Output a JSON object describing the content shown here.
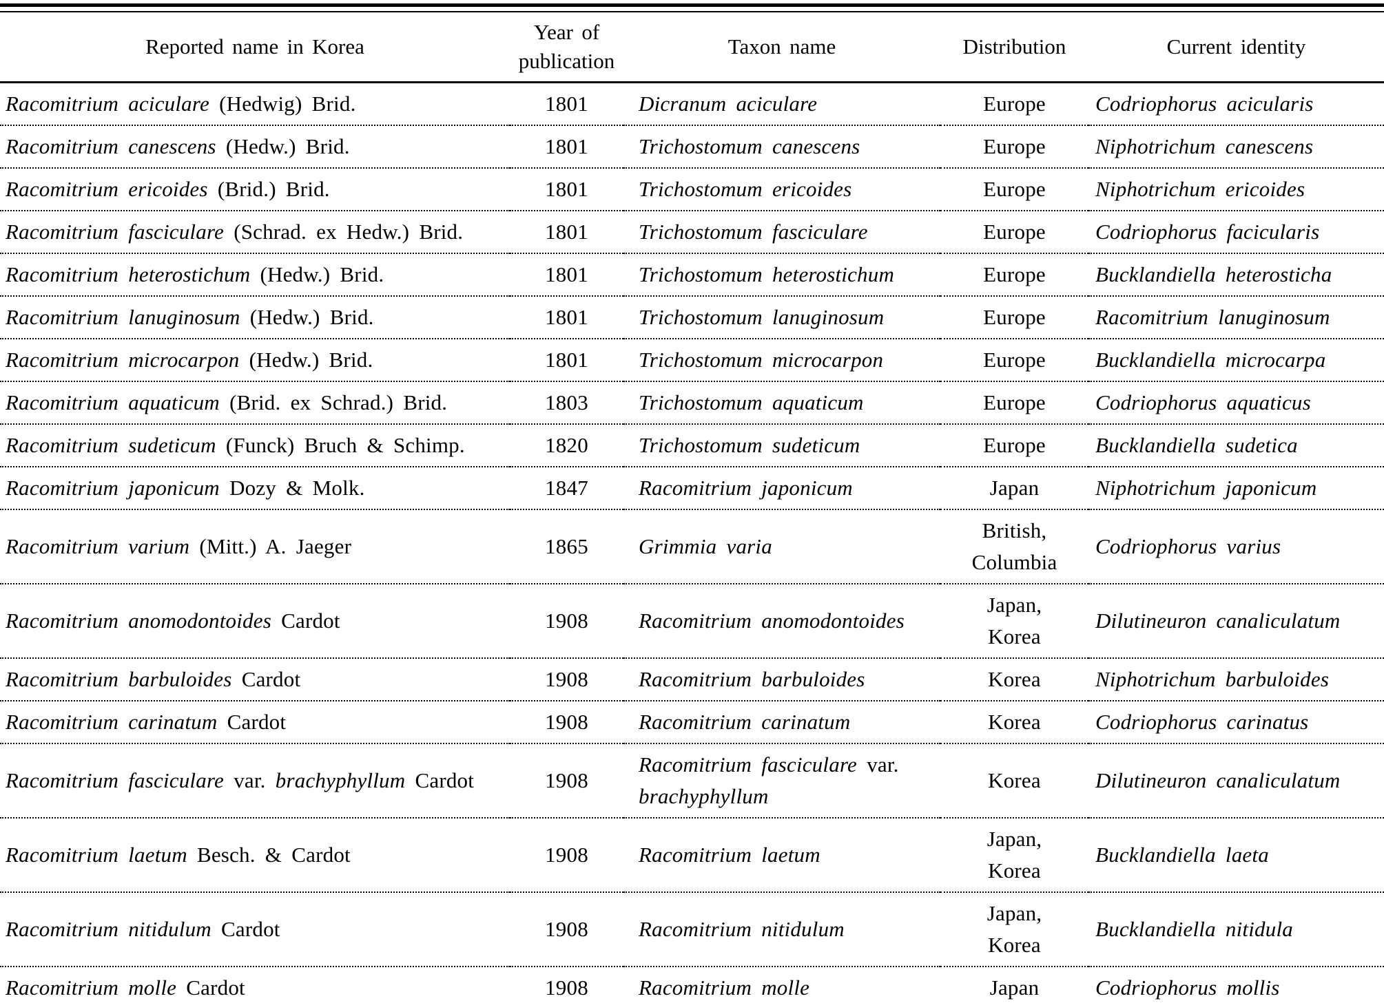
{
  "table": {
    "headers": {
      "reported": "Reported name in Korea",
      "year": "Year of publication",
      "taxon": "Taxon name",
      "distribution": "Distribution",
      "current": "Current identity"
    },
    "rows": [
      {
        "reported": [
          {
            "t": "Racomitrium aciculare",
            "it": true
          },
          {
            "t": "(Hedwig) Brid.",
            "it": false
          }
        ],
        "year": "1801",
        "taxon": [
          [
            {
              "t": "Dicranum aciculare",
              "it": true
            }
          ]
        ],
        "distribution": [
          "Europe"
        ],
        "current": [
          {
            "t": "Codriophorus acicularis",
            "it": true
          }
        ]
      },
      {
        "reported": [
          {
            "t": "Racomitrium canescens",
            "it": true
          },
          {
            "t": "(Hedw.) Brid.",
            "it": false
          }
        ],
        "year": "1801",
        "taxon": [
          [
            {
              "t": "Trichostomum canescens",
              "it": true
            }
          ]
        ],
        "distribution": [
          "Europe"
        ],
        "current": [
          {
            "t": "Niphotrichum canescens",
            "it": true
          }
        ]
      },
      {
        "reported": [
          {
            "t": "Racomitrium ericoides",
            "it": true
          },
          {
            "t": "(Brid.) Brid.",
            "it": false
          }
        ],
        "year": "1801",
        "taxon": [
          [
            {
              "t": "Trichostomum ericoides",
              "it": true
            }
          ]
        ],
        "distribution": [
          "Europe"
        ],
        "current": [
          {
            "t": "Niphotrichum ericoides",
            "it": true
          }
        ]
      },
      {
        "reported": [
          {
            "t": "Racomitrium fasciculare",
            "it": true
          },
          {
            "t": "(Schrad. ex Hedw.) Brid.",
            "it": false
          }
        ],
        "year": "1801",
        "taxon": [
          [
            {
              "t": "Trichostomum fasciculare",
              "it": true
            }
          ]
        ],
        "distribution": [
          "Europe"
        ],
        "current": [
          {
            "t": "Codriophorus facicularis",
            "it": true
          }
        ]
      },
      {
        "reported": [
          {
            "t": "Racomitrium heterostichum",
            "it": true
          },
          {
            "t": "(Hedw.) Brid.",
            "it": false
          }
        ],
        "year": "1801",
        "taxon": [
          [
            {
              "t": "Trichostomum heterostichum",
              "it": true
            }
          ]
        ],
        "distribution": [
          "Europe"
        ],
        "current": [
          {
            "t": "Bucklandiella heterosticha",
            "it": true
          }
        ]
      },
      {
        "reported": [
          {
            "t": "Racomitrium lanuginosum",
            "it": true
          },
          {
            "t": "(Hedw.) Brid.",
            "it": false
          }
        ],
        "year": "1801",
        "taxon": [
          [
            {
              "t": "Trichostomum lanuginosum",
              "it": true
            }
          ]
        ],
        "distribution": [
          "Europe"
        ],
        "current": [
          {
            "t": "Racomitrium lanuginosum",
            "it": true
          }
        ]
      },
      {
        "reported": [
          {
            "t": "Racomitrium microcarpon",
            "it": true
          },
          {
            "t": "(Hedw.) Brid.",
            "it": false
          }
        ],
        "year": "1801",
        "taxon": [
          [
            {
              "t": "Trichostomum microcarpon",
              "it": true
            }
          ]
        ],
        "distribution": [
          "Europe"
        ],
        "current": [
          {
            "t": "Bucklandiella microcarpa",
            "it": true
          }
        ]
      },
      {
        "reported": [
          {
            "t": "Racomitrium aquaticum",
            "it": true
          },
          {
            "t": "(Brid. ex Schrad.) Brid.",
            "it": false
          }
        ],
        "year": "1803",
        "taxon": [
          [
            {
              "t": "Trichostomum aquaticum",
              "it": true
            }
          ]
        ],
        "distribution": [
          "Europe"
        ],
        "current": [
          {
            "t": "Codriophorus aquaticus",
            "it": true
          }
        ]
      },
      {
        "reported": [
          {
            "t": "Racomitrium sudeticum",
            "it": true
          },
          {
            "t": "(Funck) Bruch & Schimp.",
            "it": false
          }
        ],
        "year": "1820",
        "taxon": [
          [
            {
              "t": "Trichostomum sudeticum",
              "it": true
            }
          ]
        ],
        "distribution": [
          "Europe"
        ],
        "current": [
          {
            "t": "Bucklandiella sudetica",
            "it": true
          }
        ]
      },
      {
        "reported": [
          {
            "t": "Racomitrium japonicum",
            "it": true
          },
          {
            "t": "Dozy & Molk.",
            "it": false
          }
        ],
        "year": "1847",
        "taxon": [
          [
            {
              "t": "Racomitrium japonicum",
              "it": true
            }
          ]
        ],
        "distribution": [
          "Japan"
        ],
        "current": [
          {
            "t": "Niphotrichum japonicum",
            "it": true
          }
        ]
      },
      {
        "reported": [
          {
            "t": "Racomitrium varium",
            "it": true
          },
          {
            "t": "(Mitt.) A. Jaeger",
            "it": false
          }
        ],
        "year": "1865",
        "taxon": [
          [
            {
              "t": "Grimmia varia",
              "it": true
            }
          ]
        ],
        "distribution": [
          "British,",
          "Columbia"
        ],
        "current": [
          {
            "t": "Codriophorus varius",
            "it": true
          }
        ]
      },
      {
        "reported": [
          {
            "t": "Racomitrium anomodontoides",
            "it": true
          },
          {
            "t": "Cardot",
            "it": false
          }
        ],
        "year": "1908",
        "taxon": [
          [
            {
              "t": "Racomitrium anomodontoides",
              "it": true
            }
          ]
        ],
        "distribution": [
          "Japan,",
          "Korea"
        ],
        "current": [
          {
            "t": "Dilutineuron canaliculatum",
            "it": true
          }
        ]
      },
      {
        "reported": [
          {
            "t": "Racomitrium barbuloides",
            "it": true
          },
          {
            "t": "Cardot",
            "it": false
          }
        ],
        "year": "1908",
        "taxon": [
          [
            {
              "t": "Racomitrium barbuloides",
              "it": true
            }
          ]
        ],
        "distribution": [
          "Korea"
        ],
        "current": [
          {
            "t": "Niphotrichum barbuloides",
            "it": true
          }
        ]
      },
      {
        "reported": [
          {
            "t": "Racomitrium carinatum",
            "it": true
          },
          {
            "t": "Cardot",
            "it": false
          }
        ],
        "year": "1908",
        "taxon": [
          [
            {
              "t": "Racomitrium carinatum",
              "it": true
            }
          ]
        ],
        "distribution": [
          "Korea"
        ],
        "current": [
          {
            "t": "Codriophorus carinatus",
            "it": true
          }
        ]
      },
      {
        "reported": [
          {
            "t": "Racomitrium fasciculare",
            "it": true
          },
          {
            "t": "var.",
            "it": false
          },
          {
            "t": "brachyphyllum",
            "it": true
          },
          {
            "t": "Cardot",
            "it": false
          }
        ],
        "year": "1908",
        "taxon": [
          [
            {
              "t": "Racomitrium fasciculare",
              "it": true
            },
            {
              "t": "var.",
              "it": false
            }
          ],
          [
            {
              "t": "brachyphyllum",
              "it": true
            }
          ]
        ],
        "distribution": [
          "Korea"
        ],
        "current": [
          {
            "t": "Dilutineuron canaliculatum",
            "it": true
          }
        ]
      },
      {
        "reported": [
          {
            "t": "Racomitrium laetum",
            "it": true
          },
          {
            "t": "Besch. & Cardot",
            "it": false
          }
        ],
        "year": "1908",
        "taxon": [
          [
            {
              "t": "Racomitrium laetum",
              "it": true
            }
          ]
        ],
        "distribution": [
          "Japan,",
          "Korea"
        ],
        "current": [
          {
            "t": "Bucklandiella laeta",
            "it": true
          }
        ]
      },
      {
        "reported": [
          {
            "t": "Racomitrium nitidulum",
            "it": true
          },
          {
            "t": "Cardot",
            "it": false
          }
        ],
        "year": "1908",
        "taxon": [
          [
            {
              "t": "Racomitrium nitidulum",
              "it": true
            }
          ]
        ],
        "distribution": [
          "Japan,",
          "Korea"
        ],
        "current": [
          {
            "t": "Bucklandiella nitidula",
            "it": true
          }
        ]
      },
      {
        "reported": [
          {
            "t": "Racomitrium molle",
            "it": true
          },
          {
            "t": "Cardot",
            "it": false
          }
        ],
        "year": "1908",
        "taxon": [
          [
            {
              "t": "Racomitrium molle",
              "it": true
            }
          ]
        ],
        "distribution": [
          "Japan"
        ],
        "current": [
          {
            "t": "Codriophorus mollis",
            "it": true
          }
        ]
      }
    ]
  }
}
